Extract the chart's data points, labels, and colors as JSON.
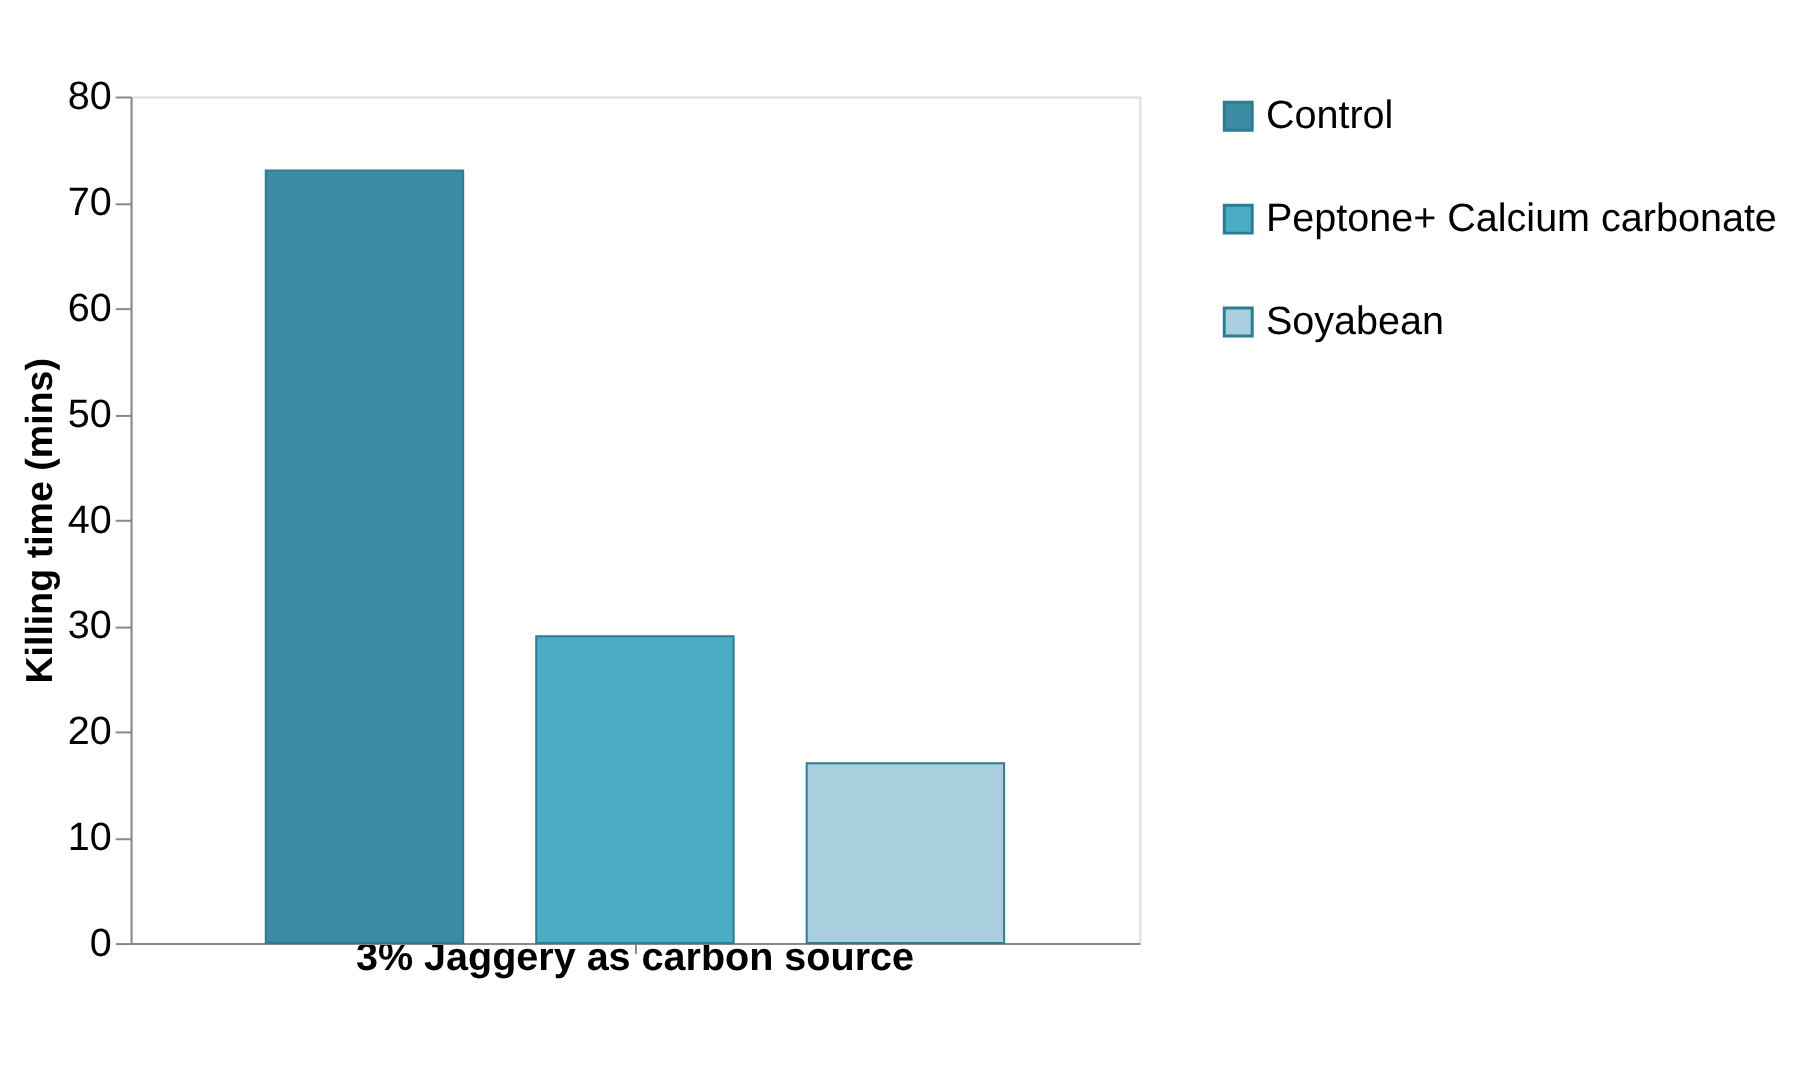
{
  "chart_data": {
    "type": "bar",
    "ylabel": "Killing time (mins)",
    "categories": [
      "3% Jaggery as carbon source"
    ],
    "series": [
      {
        "name": "Control",
        "color": "#3d8ba3",
        "values": [
          73
        ]
      },
      {
        "name": "Peptone+ Calcium carbonate",
        "color": "#4bacc6",
        "values": [
          29
        ]
      },
      {
        "name": "Soyabean",
        "color": "#a9cedd",
        "values": [
          17
        ]
      }
    ],
    "ylim": [
      0,
      80
    ],
    "yticks": [
      0,
      10,
      20,
      30,
      40,
      50,
      60,
      70,
      80
    ],
    "grid": false,
    "legend": "right"
  }
}
